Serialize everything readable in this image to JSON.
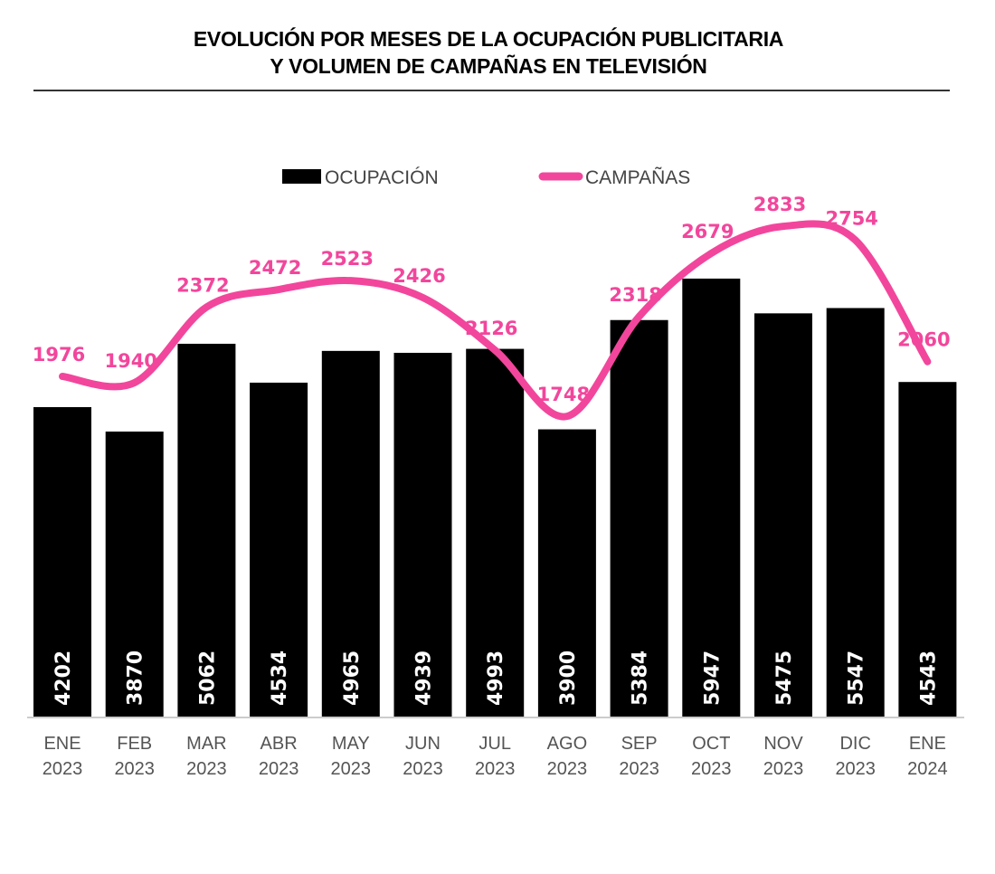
{
  "chart_data": {
    "type": "bar+line",
    "title": [
      "EVOLUCIÓN POR MESES DE LA OCUPACIÓN PUBLICITARIA",
      "Y VOLUMEN DE CAMPAÑAS EN TELEVISIÓN"
    ],
    "categories": [
      [
        "ENE",
        "2023"
      ],
      [
        "FEB",
        "2023"
      ],
      [
        "MAR",
        "2023"
      ],
      [
        "ABR",
        "2023"
      ],
      [
        "MAY",
        "2023"
      ],
      [
        "JUN",
        "2023"
      ],
      [
        "JUL",
        "2023"
      ],
      [
        "AGO",
        "2023"
      ],
      [
        "SEP",
        "2023"
      ],
      [
        "OCT",
        "2023"
      ],
      [
        "NOV",
        "2023"
      ],
      [
        "DIC",
        "2023"
      ],
      [
        "ENE",
        "2024"
      ]
    ],
    "series": [
      {
        "name": "OCUPACIÓN",
        "type": "bar",
        "color": "#000000",
        "values": [
          4202,
          3870,
          5062,
          4534,
          4965,
          4939,
          4993,
          3900,
          5384,
          5947,
          5475,
          5547,
          4543
        ]
      },
      {
        "name": "CAMPAÑAS",
        "type": "line",
        "color": "#f2469c",
        "smooth": true,
        "values": [
          1976,
          1940,
          2372,
          2472,
          2523,
          2426,
          2126,
          1748,
          2318,
          2679,
          2833,
          2754,
          2060
        ]
      }
    ],
    "legend_position": "top",
    "grid": false,
    "data_labels": true
  }
}
